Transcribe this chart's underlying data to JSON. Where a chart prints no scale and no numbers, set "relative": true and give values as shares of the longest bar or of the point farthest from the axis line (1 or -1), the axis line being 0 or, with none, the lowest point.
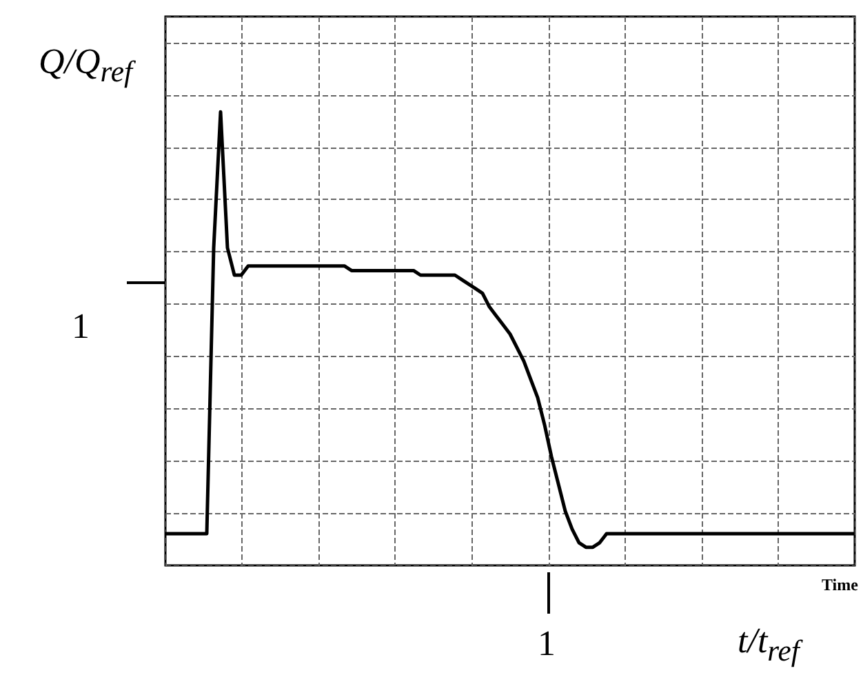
{
  "chart_data": {
    "type": "line",
    "relative": true,
    "grid": true,
    "line_style": "solid",
    "ylabel": "Q/Q$_{ref}$",
    "xlabel": "t/t$_{ref}$",
    "annotations": [
      "1",
      "1",
      "Time"
    ],
    "categories": [
      null,
      null,
      null,
      null,
      null,
      null,
      null,
      null,
      null,
      null,
      null,
      null,
      null,
      null,
      null,
      null,
      null,
      null,
      null,
      null,
      null,
      null,
      null,
      null,
      null,
      null,
      null,
      null,
      null,
      null,
      null,
      null,
      null,
      null,
      null,
      null,
      null,
      null,
      null,
      null,
      null,
      null,
      null,
      null,
      null,
      null,
      null,
      null,
      null,
      null,
      null,
      null,
      null,
      null,
      null,
      null,
      null,
      null,
      null,
      null,
      null,
      null,
      null,
      null,
      null,
      null,
      null,
      null,
      null,
      null,
      null,
      null,
      null,
      null,
      null,
      null,
      null,
      null,
      null,
      null,
      null,
      null,
      null,
      null,
      null,
      null,
      null,
      null,
      null,
      null,
      null,
      null,
      null,
      null,
      null,
      null,
      null,
      null,
      null,
      null,
      null
    ],
    "series": [
      {
        "color": "#000000",
        "values": [
          0.07,
          0.07,
          0.07,
          0.07,
          0.07,
          0.07,
          0.07,
          0.7,
          1.0,
          0.7,
          0.64,
          0.64,
          0.66,
          0.66,
          0.66,
          0.66,
          0.66,
          0.66,
          0.66,
          0.66,
          0.66,
          0.66,
          0.66,
          0.66,
          0.66,
          0.66,
          0.66,
          0.65,
          0.65,
          0.65,
          0.65,
          0.65,
          0.65,
          0.65,
          0.65,
          0.65,
          0.65,
          0.64,
          0.64,
          0.64,
          0.64,
          0.64,
          0.64,
          0.63,
          0.62,
          0.61,
          0.6,
          0.57,
          0.55,
          0.53,
          0.51,
          0.48,
          0.45,
          0.41,
          0.37,
          0.31,
          0.24,
          0.18,
          0.12,
          0.08,
          0.05,
          0.04,
          0.04,
          0.05,
          0.07,
          0.07,
          0.07,
          0.07,
          0.07,
          0.07,
          0.07,
          0.07,
          0.07,
          0.07,
          0.07,
          0.07,
          0.07,
          0.07,
          0.07,
          0.07,
          0.07,
          0.07,
          0.07,
          0.07,
          0.07,
          0.07,
          0.07,
          0.07,
          0.07,
          0.07,
          0.07,
          0.07,
          0.07,
          0.07,
          0.07,
          0.07,
          0.07,
          0.07,
          0.07,
          0.07,
          0.07
        ]
      }
    ]
  }
}
